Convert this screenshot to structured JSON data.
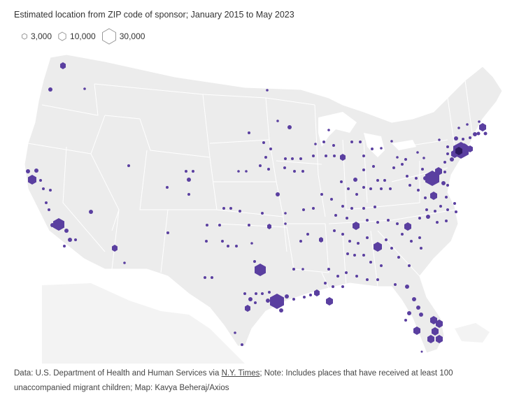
{
  "subtitle": "Estimated location from ZIP code of sponsor; January 2015 to May 2023",
  "legend": [
    {
      "label": "3,000",
      "value": 3000
    },
    {
      "label": "10,000",
      "value": 10000
    },
    {
      "label": "30,000",
      "value": 30000
    }
  ],
  "footer": {
    "source_prefix": "Data: U.S. Department of Health and Human Services via ",
    "source_link": "N.Y. Times",
    "source_suffix": "; Note: Includes places that have received at least 100 unaccompanied migrant children; Map: Kavya Beheraj/Axios"
  },
  "colors": {
    "marker": "#5a3fa0",
    "land": "#ececec",
    "border": "#ffffff",
    "text": "#333333"
  },
  "symbol": "hexagon",
  "chart_data": {
    "type": "scatter",
    "description_of_encoding": "symbol area proportional to count",
    "points": [
      {
        "place": "Los Angeles, CA",
        "value": 22000
      },
      {
        "place": "Houston, TX",
        "value": 30000
      },
      {
        "place": "New York, NY",
        "value": 30000
      },
      {
        "place": "Washington, DC area",
        "value": 25000
      },
      {
        "place": "Miami, FL",
        "value": 12000
      },
      {
        "place": "Dallas, TX",
        "value": 12000
      },
      {
        "place": "Atlanta, GA",
        "value": 8000
      },
      {
        "place": "San Francisco, CA",
        "value": 8000
      }
    ]
  }
}
